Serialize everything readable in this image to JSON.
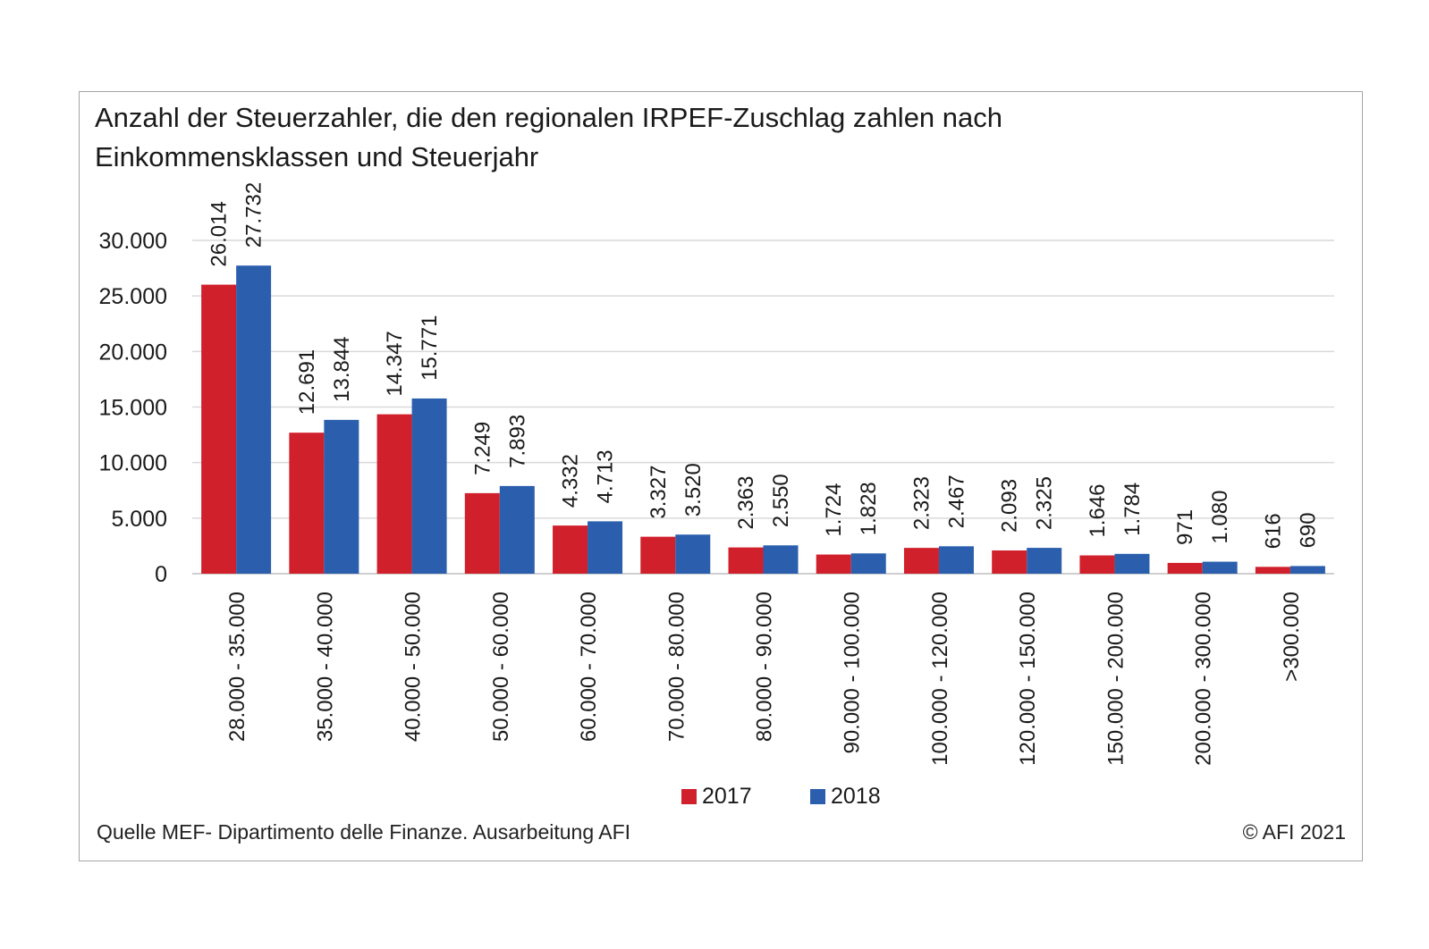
{
  "chart_data": {
    "type": "bar",
    "title": "Anzahl der Steuerzahler, die den regionalen IRPEF-Zuschlag zahlen nach Einkommensklassen und Steuerjahr",
    "title_lines": [
      "Anzahl der Steuerzahler, die den regionalen IRPEF-Zuschlag zahlen nach",
      "Einkommensklassen und Steuerjahr"
    ],
    "xlabel": "",
    "ylabel": "",
    "ylim": [
      0,
      30000
    ],
    "yticks": [
      0,
      5000,
      10000,
      15000,
      20000,
      25000,
      30000
    ],
    "ytick_labels": [
      "0",
      "5.000",
      "10.000",
      "15.000",
      "20.000",
      "25.000",
      "30.000"
    ],
    "grid": true,
    "legend_position": "bottom",
    "categories": [
      "28.000 - 35.000",
      "35.000 - 40.000",
      "40.000 - 50.000",
      "50.000 - 60.000",
      "60.000 - 70.000",
      "70.000 - 80.000",
      "80.000 - 90.000",
      "90.000 - 100.000",
      "100.000 - 120.000",
      "120.000 - 150.000",
      "150.000 - 200.000",
      "200.000 - 300.000",
      ">300.000"
    ],
    "series": [
      {
        "name": "2017",
        "color": "#d0202b",
        "values": [
          26014,
          12691,
          14347,
          7249,
          4332,
          3327,
          2363,
          1724,
          2323,
          2093,
          1646,
          971,
          616
        ],
        "labels": [
          "26.014",
          "12.691",
          "14.347",
          "7.249",
          "4.332",
          "3.327",
          "2.363",
          "1.724",
          "2.323",
          "2.093",
          "1.646",
          "971",
          "616"
        ]
      },
      {
        "name": "2018",
        "color": "#2b5fad",
        "values": [
          27732,
          13844,
          15771,
          7893,
          4713,
          3520,
          2550,
          1828,
          2467,
          2325,
          1784,
          1080,
          690
        ],
        "labels": [
          "27.732",
          "13.844",
          "15.771",
          "7.893",
          "4.713",
          "3.520",
          "2.550",
          "1.828",
          "2.467",
          "2.325",
          "1.784",
          "1.080",
          "690"
        ]
      }
    ]
  },
  "footer": {
    "source": "Quelle MEF- Dipartimento delle Finanze. Ausarbeitung AFI",
    "copyright": "© AFI 2021"
  }
}
